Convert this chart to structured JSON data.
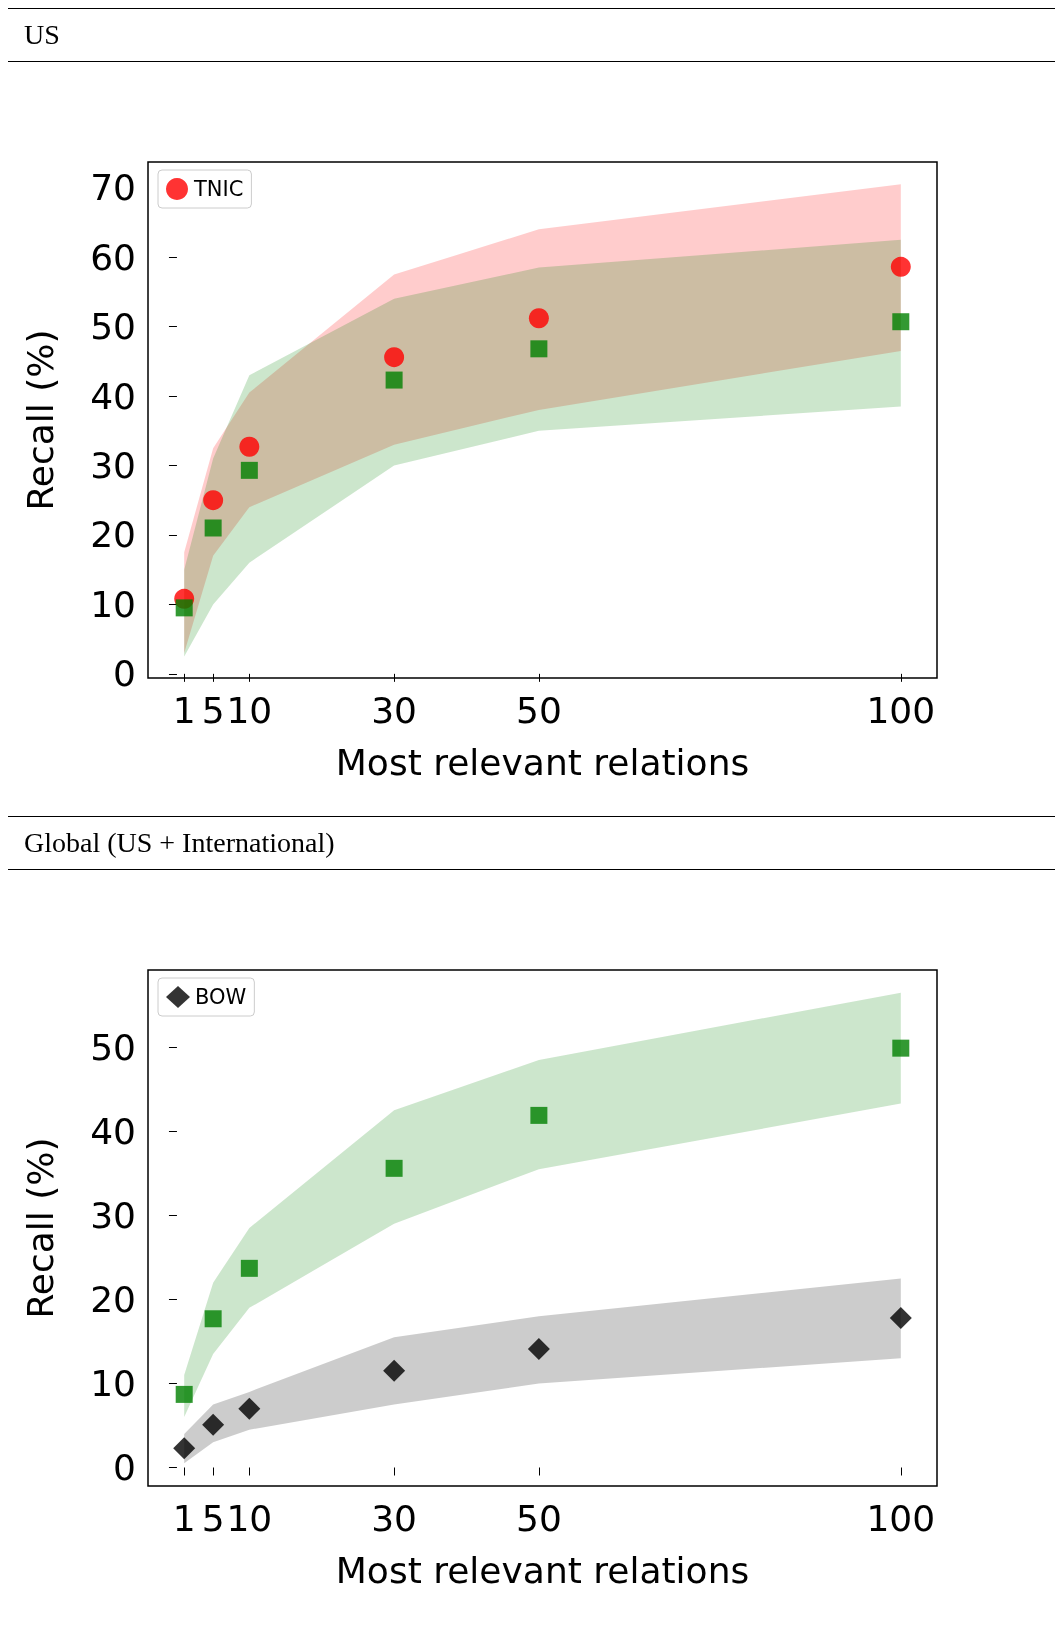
{
  "chart_data": [
    {
      "type": "scatter",
      "title": "US",
      "xlabel": "Most relevant relations",
      "ylabel": "Recall (%)",
      "x": [
        1,
        5,
        10,
        30,
        50,
        100
      ],
      "xlim": [
        -4,
        105
      ],
      "xticks": [
        1,
        5,
        10,
        30,
        50,
        100
      ],
      "ylim": [
        -0.6,
        73.7
      ],
      "yticks": [
        0,
        10,
        20,
        30,
        40,
        50,
        60,
        70
      ],
      "legend": "top left",
      "series": [
        {
          "name": "TNIC",
          "color": "#ff0000",
          "marker": "circle",
          "values": [
            10.8,
            25.0,
            32.7,
            45.6,
            51.2,
            58.6
          ],
          "lower": [
            3,
            17,
            24,
            33,
            38,
            46.5
          ],
          "upper": [
            17.5,
            32.5,
            40.5,
            57.5,
            64,
            70.5
          ]
        },
        {
          "color": "#008000",
          "marker": "square",
          "values": [
            9.5,
            21.0,
            29.3,
            42.3,
            46.8,
            50.7
          ],
          "lower": [
            2.5,
            10,
            16,
            30,
            35,
            38.5
          ],
          "upper": [
            15,
            31,
            43,
            54,
            58.5,
            62.5
          ]
        }
      ]
    },
    {
      "type": "scatter",
      "title": "Global (US + International)",
      "xlabel": "Most relevant relations",
      "ylabel": "Recall (%)",
      "x": [
        1,
        5,
        10,
        30,
        50,
        100
      ],
      "xlim": [
        -4,
        105
      ],
      "xticks": [
        1,
        5,
        10,
        30,
        50,
        100
      ],
      "ylim": [
        -2.2,
        59.2
      ],
      "yticks": [
        0,
        10,
        20,
        30,
        40,
        50
      ],
      "legend": "top left",
      "series": [
        {
          "name": "BOW",
          "color": "#000000",
          "marker": "diamond",
          "values": [
            2.3,
            5.1,
            7.0,
            11.5,
            14.1,
            17.8
          ],
          "lower": [
            0.5,
            3,
            4.5,
            7.5,
            10,
            13
          ],
          "upper": [
            4,
            7.5,
            9,
            15.5,
            18,
            22.5
          ]
        },
        {
          "color": "#008000",
          "marker": "square",
          "values": [
            8.7,
            17.7,
            23.7,
            35.6,
            41.9,
            49.9
          ],
          "lower": [
            6,
            13.5,
            19,
            29,
            35.5,
            43.3
          ],
          "upper": [
            11,
            22,
            28.5,
            42.5,
            48.5,
            56.5
          ]
        }
      ]
    }
  ]
}
